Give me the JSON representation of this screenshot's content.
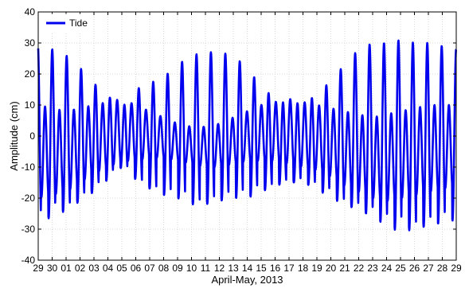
{
  "chart_data": {
    "type": "line",
    "title": "",
    "xlabel": "April-May, 2013",
    "ylabel": "Amplitude (cm)",
    "ylim": [
      -40,
      40
    ],
    "y_ticks": [
      40,
      30,
      20,
      10,
      0,
      -10,
      -20,
      -30,
      -40
    ],
    "x_tick_labels": [
      "29",
      "30",
      "01",
      "02",
      "03",
      "04",
      "05",
      "06",
      "07",
      "08",
      "09",
      "10",
      "11",
      "12",
      "13",
      "14",
      "15",
      "16",
      "17",
      "18",
      "19",
      "20",
      "21",
      "22",
      "23",
      "24",
      "25",
      "26",
      "27",
      "28",
      "29"
    ],
    "grid": true,
    "legend_position": "top-left",
    "series": [
      {
        "name": "Tide",
        "color": "#0000ee",
        "daily_envelope": {
          "day": [
            0,
            1,
            2,
            3,
            4,
            5,
            6,
            7,
            8,
            9,
            10,
            11,
            12,
            13,
            14,
            15,
            16,
            17,
            18,
            19,
            20,
            21,
            22,
            23,
            24,
            25,
            26,
            27,
            28,
            29,
            30
          ],
          "high_max": [
            30,
            28,
            26,
            22,
            17,
            13,
            9,
            15,
            17,
            19,
            23,
            26,
            27,
            27,
            26,
            22,
            16,
            12,
            10,
            11,
            13,
            18,
            23,
            28,
            30,
            30,
            31,
            30,
            30,
            29,
            28
          ],
          "high_min": [
            10,
            9,
            8,
            9,
            10,
            11,
            12,
            10,
            8,
            6,
            4,
            3,
            3,
            4,
            6,
            8,
            10,
            11,
            12,
            11,
            10,
            9,
            8,
            7,
            6,
            7,
            8,
            9,
            10,
            10,
            10
          ],
          "low_max": [
            -20,
            -19,
            -18,
            -15,
            -12,
            -10,
            -8,
            -8,
            -7,
            -7,
            -8,
            -9,
            -10,
            -10,
            -9,
            -8,
            -8,
            -8,
            -9,
            -10,
            -11,
            -13,
            -16,
            -18,
            -20,
            -21,
            -20,
            -19,
            -18,
            -17,
            -16
          ],
          "low_min": [
            -28,
            -26,
            -24,
            -21,
            -18,
            -14,
            -10,
            -14,
            -17,
            -19,
            -20,
            -22,
            -22,
            -21,
            -20,
            -20,
            -18,
            -16,
            -15,
            -15,
            -17,
            -20,
            -22,
            -24,
            -26,
            -29,
            -31,
            -30,
            -29,
            -28,
            -27
          ]
        }
      }
    ]
  }
}
